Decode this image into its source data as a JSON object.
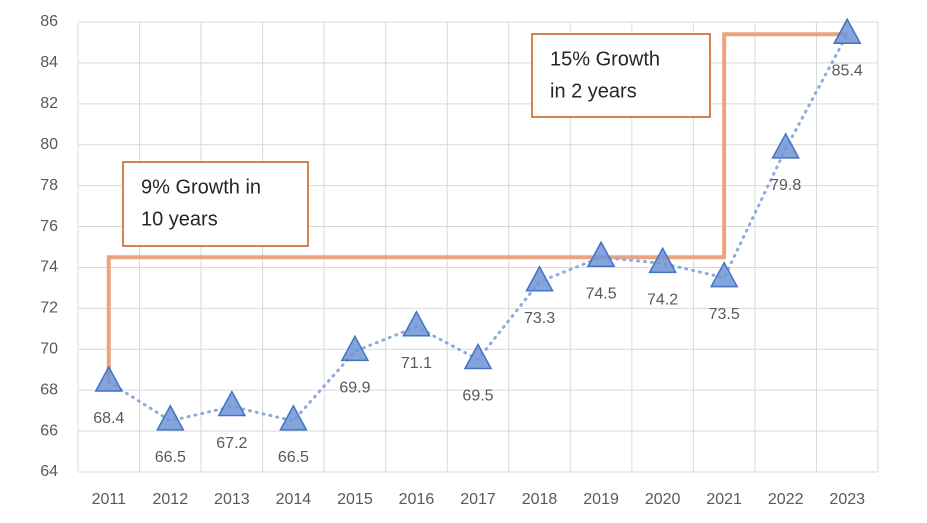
{
  "chart_data": {
    "type": "line",
    "categories": [
      "2011",
      "2012",
      "2013",
      "2014",
      "2015",
      "2016",
      "2017",
      "2018",
      "2019",
      "2020",
      "2021",
      "2022",
      "2023"
    ],
    "values": [
      68.4,
      66.5,
      67.2,
      66.5,
      69.9,
      71.1,
      69.5,
      73.3,
      74.5,
      74.2,
      73.5,
      79.8,
      85.4
    ],
    "color": "#8faadc",
    "marker_color": "#6f94d6",
    "marker_edge": "#4472c4",
    "ylim": [
      64,
      86
    ],
    "yticks": [
      64,
      66,
      68,
      70,
      72,
      74,
      76,
      78,
      80,
      82,
      84,
      86
    ],
    "grid": true,
    "step_color": "#eaa47f",
    "box_edge": "#c55a11",
    "annotations": [
      {
        "lines": [
          "9% Growth in",
          "10 years"
        ]
      },
      {
        "lines": [
          "15% Growth",
          "in 2 years"
        ]
      }
    ]
  }
}
